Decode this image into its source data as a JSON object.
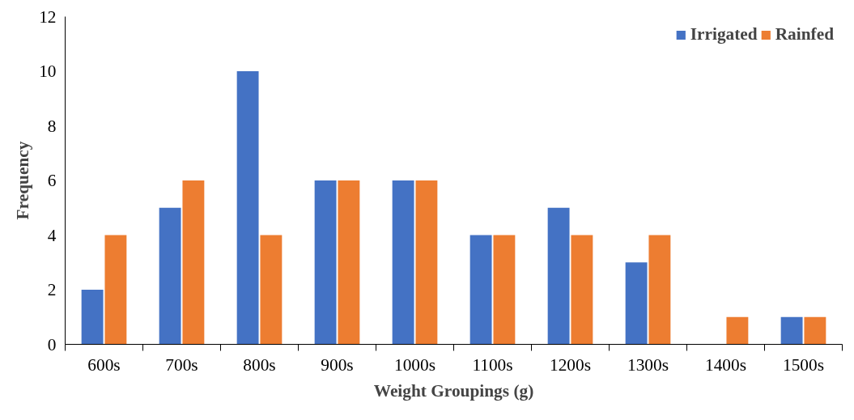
{
  "chart_data": {
    "type": "bar",
    "xlabel": "Weight Groupings (g)",
    "ylabel": "Frequency",
    "categories": [
      "600s",
      "700s",
      "800s",
      "900s",
      "1000s",
      "1100s",
      "1200s",
      "1300s",
      "1400s",
      "1500s"
    ],
    "series": [
      {
        "name": "Irrigated",
        "color": "#4472c4",
        "values": [
          2,
          5,
          10,
          6,
          6,
          4,
          5,
          3,
          0,
          1
        ]
      },
      {
        "name": "Rainfed",
        "color": "#ed7d31",
        "values": [
          4,
          6,
          4,
          6,
          6,
          4,
          4,
          4,
          1,
          1
        ]
      }
    ],
    "ylim": [
      0,
      12
    ],
    "yticks": [
      0,
      2,
      4,
      6,
      8,
      10,
      12
    ],
    "grid": false,
    "legend": "top right"
  }
}
